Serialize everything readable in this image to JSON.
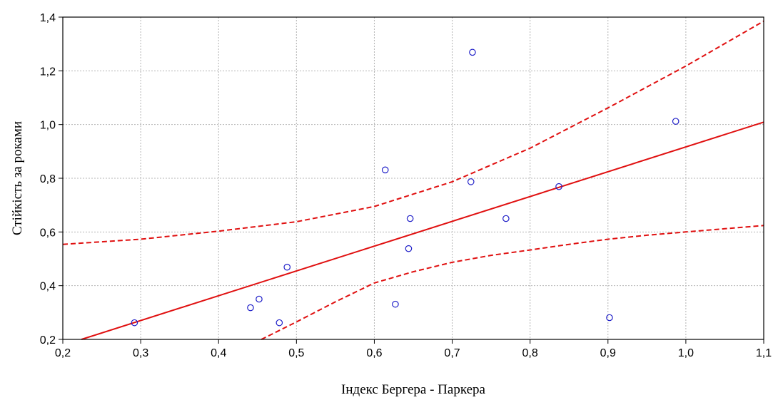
{
  "chart_data": {
    "type": "scatter",
    "title": "",
    "xlabel": "Індекс Бергера - Паркера",
    "ylabel": "Стійкість за роками",
    "xlim": [
      0.2,
      1.1
    ],
    "ylim": [
      0.2,
      1.4
    ],
    "x_ticks": [
      "0,2",
      "0,3",
      "0,4",
      "0,5",
      "0,6",
      "0,7",
      "0,8",
      "0,9",
      "1,0",
      "1,1"
    ],
    "y_ticks": [
      "0,2",
      "0,4",
      "0,6",
      "0,8",
      "1,0",
      "1,2",
      "1,4"
    ],
    "grid": true,
    "points": [
      {
        "x": 0.292,
        "y": 0.262
      },
      {
        "x": 0.441,
        "y": 0.318
      },
      {
        "x": 0.452,
        "y": 0.35
      },
      {
        "x": 0.478,
        "y": 0.262
      },
      {
        "x": 0.488,
        "y": 0.469
      },
      {
        "x": 0.614,
        "y": 0.831
      },
      {
        "x": 0.627,
        "y": 0.331
      },
      {
        "x": 0.644,
        "y": 0.538
      },
      {
        "x": 0.646,
        "y": 0.65
      },
      {
        "x": 0.724,
        "y": 0.787
      },
      {
        "x": 0.726,
        "y": 1.269
      },
      {
        "x": 0.769,
        "y": 0.65
      },
      {
        "x": 0.837,
        "y": 0.769
      },
      {
        "x": 0.902,
        "y": 0.281
      },
      {
        "x": 0.987,
        "y": 1.012
      }
    ],
    "fit_line": {
      "x": [
        0.224,
        1.1
      ],
      "y": [
        0.2,
        1.009
      ]
    },
    "confidence_upper": {
      "x": [
        0.2,
        0.3,
        0.4,
        0.5,
        0.6,
        0.7,
        0.8,
        0.9,
        1.0,
        1.1
      ],
      "y": [
        0.554,
        0.573,
        0.603,
        0.638,
        0.695,
        0.787,
        0.912,
        1.062,
        1.218,
        1.385
      ]
    },
    "confidence_lower": {
      "x": [
        0.455,
        0.5,
        0.55,
        0.6,
        0.65,
        0.7,
        0.75,
        0.8,
        0.85,
        0.9,
        0.95,
        1.0,
        1.05,
        1.1
      ],
      "y": [
        0.2,
        0.265,
        0.34,
        0.41,
        0.452,
        0.487,
        0.513,
        0.533,
        0.554,
        0.573,
        0.588,
        0.6,
        0.612,
        0.624
      ]
    },
    "colors": {
      "points": "#1f1fc8",
      "fit": "#e01010",
      "confidence": "#e01010",
      "grid": "#b4b4b4",
      "axes": "#000000"
    }
  }
}
